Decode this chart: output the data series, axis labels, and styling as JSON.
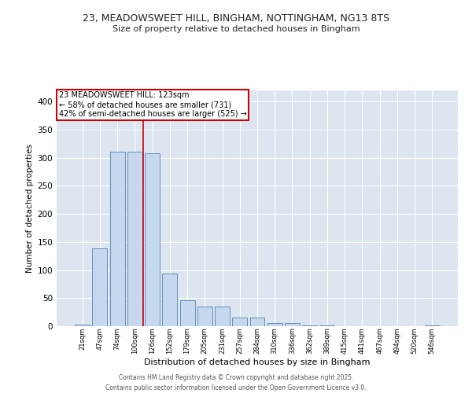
{
  "title_line1": "23, MEADOWSWEET HILL, BINGHAM, NOTTINGHAM, NG13 8TS",
  "title_line2": "Size of property relative to detached houses in Bingham",
  "xlabel": "Distribution of detached houses by size in Bingham",
  "ylabel": "Number of detached properties",
  "categories": [
    "21sqm",
    "47sqm",
    "74sqm",
    "100sqm",
    "126sqm",
    "152sqm",
    "179sqm",
    "205sqm",
    "231sqm",
    "257sqm",
    "284sqm",
    "310sqm",
    "336sqm",
    "362sqm",
    "389sqm",
    "415sqm",
    "441sqm",
    "467sqm",
    "494sqm",
    "520sqm",
    "546sqm"
  ],
  "values": [
    3,
    138,
    311,
    311,
    308,
    94,
    46,
    35,
    35,
    16,
    16,
    6,
    6,
    1,
    1,
    0,
    0,
    0,
    0,
    0,
    2
  ],
  "bar_color": "#c5d8ed",
  "bar_edge_color": "#4f82b0",
  "vline_x": 3.5,
  "vline_color": "#cc0000",
  "annotation_title": "23 MEADOWSWEET HILL: 123sqm",
  "annotation_line2": "← 58% of detached houses are smaller (731)",
  "annotation_line3": "42% of semi-detached houses are larger (525) →",
  "annotation_box_edgecolor": "#cc0000",
  "ylim": [
    0,
    420
  ],
  "yticks": [
    0,
    50,
    100,
    150,
    200,
    250,
    300,
    350,
    400
  ],
  "bg_color": "#dde6f0",
  "footer_line1": "Contains HM Land Registry data © Crown copyright and database right 2025.",
  "footer_line2": "Contains public sector information licensed under the Open Government Licence v3.0."
}
